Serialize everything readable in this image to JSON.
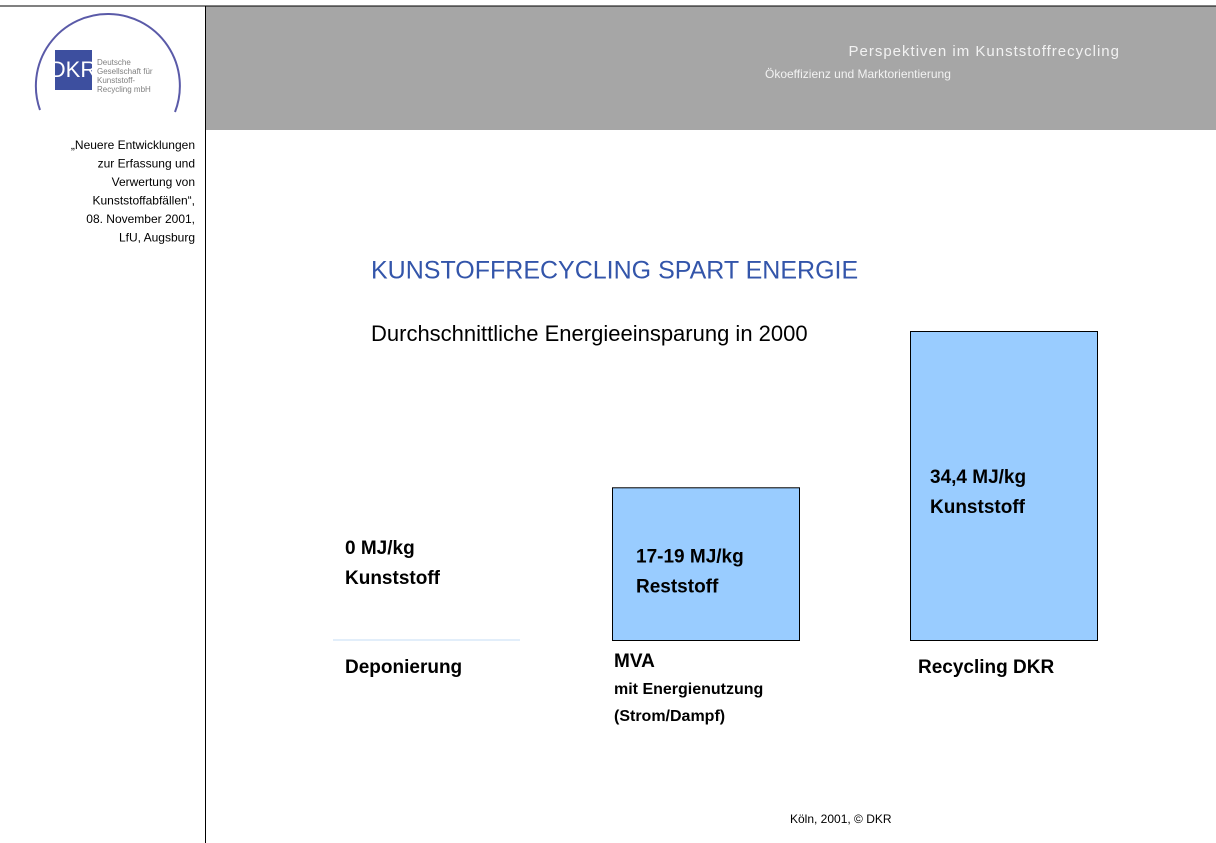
{
  "header": {
    "logo_abbr": "DKR",
    "logo_text": [
      "Deutsche",
      "Gesellschaft für",
      "Kunststoff-",
      "Recycling mbH"
    ],
    "title": "Perspektiven im Kunststoffrecycling",
    "subtitle": "Ökoeffizienz und Marktorientierung"
  },
  "sidebar_note": [
    "„Neuere Entwicklungen",
    "zur Erfassung und",
    "Verwertung von",
    "Kunststoffabfällen“,",
    "08. November 2001,",
    "LfU, Augsburg"
  ],
  "chart_data": {
    "type": "bar",
    "title": "KUNSTOFFRECYCLING SPART ENERGIE",
    "subtitle": "Durchschnittliche Energieeinsparung in 2000",
    "categories": [
      "Deponierung",
      "MVA",
      "Recycling DKR"
    ],
    "category_notes": [
      null,
      [
        "mit Energienutzung",
        "(Strom/Dampf)"
      ],
      null
    ],
    "values": [
      0,
      17,
      34.4
    ],
    "value_labels": [
      "0 MJ/kg",
      "17-19  MJ/kg",
      "34,4 MJ/kg"
    ],
    "value_label_units": [
      "Kunststoff",
      "Reststoff",
      "Kunststoff"
    ],
    "color": "#99ccff"
  },
  "footer": "Köln, 2001, © DKR"
}
